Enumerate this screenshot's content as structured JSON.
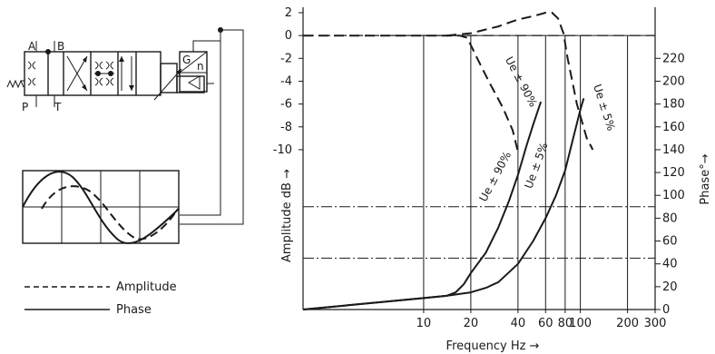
{
  "legend": {
    "amplitude_label": "Amplitude",
    "phase_label": "Phase"
  },
  "schematic": {
    "port_a": "A",
    "port_b": "B",
    "port_p": "P",
    "port_t": "T",
    "amp_g": "G",
    "amp_n": "n"
  },
  "chart_data": {
    "type": "line",
    "xlabel": "Frequency Hz →",
    "ylabel_left": "Amplitude dB →",
    "ylabel_right": "Phase°→",
    "x_scale": "log",
    "xlim": [
      1.7,
      300
    ],
    "x_ticks": [
      10,
      20,
      40,
      60,
      80,
      100,
      200,
      300
    ],
    "y_left_lim": [
      -24,
      2
    ],
    "y_left_ticks": [
      2,
      0,
      -2,
      -4,
      -6,
      -8,
      -10
    ],
    "y_right_lim": [
      0,
      260
    ],
    "y_right_ticks": [
      220,
      200,
      180,
      160,
      140,
      120,
      100,
      80,
      60,
      40,
      20,
      0
    ],
    "phase_reference_lines": [
      90,
      45
    ],
    "amplitude_reference_line": 0,
    "grid_vertical_at": [
      10,
      20,
      40,
      60,
      80,
      100,
      200
    ],
    "series": [
      {
        "name": "Ue ± 90%",
        "kind": "amplitude",
        "style": "dashed",
        "axis": "left",
        "points": [
          [
            1.7,
            0
          ],
          [
            14,
            0
          ],
          [
            17,
            0
          ],
          [
            19,
            -0.2
          ],
          [
            22,
            -2
          ],
          [
            26,
            -4
          ],
          [
            32,
            -6.3
          ],
          [
            37,
            -8.3
          ],
          [
            40,
            -10.2
          ]
        ]
      },
      {
        "name": "Ue ± 5%",
        "kind": "amplitude",
        "style": "dashed",
        "axis": "left",
        "points": [
          [
            14,
            0
          ],
          [
            20,
            0.2
          ],
          [
            30,
            0.8
          ],
          [
            40,
            1.4
          ],
          [
            50,
            1.7
          ],
          [
            60,
            2.0
          ],
          [
            66,
            2.0
          ],
          [
            72,
            1.5
          ],
          [
            78,
            0.2
          ],
          [
            83,
            -2
          ],
          [
            95,
            -6
          ],
          [
            110,
            -9
          ],
          [
            120,
            -10
          ]
        ]
      },
      {
        "name": "Ue ± 90%",
        "kind": "phase",
        "style": "solid",
        "axis": "right",
        "points": [
          [
            1.7,
            0
          ],
          [
            10,
            10
          ],
          [
            14,
            12
          ],
          [
            16,
            15
          ],
          [
            18,
            22
          ],
          [
            20,
            32
          ],
          [
            25,
            50
          ],
          [
            30,
            72
          ],
          [
            35,
            95
          ],
          [
            40,
            118
          ],
          [
            45,
            142
          ],
          [
            50,
            162
          ],
          [
            56,
            182
          ]
        ]
      },
      {
        "name": "Ue ± 5%",
        "kind": "phase",
        "style": "solid",
        "axis": "right",
        "points": [
          [
            1.7,
            0
          ],
          [
            10,
            10
          ],
          [
            14,
            12
          ],
          [
            20,
            15
          ],
          [
            25,
            19
          ],
          [
            30,
            24
          ],
          [
            40,
            40
          ],
          [
            50,
            60
          ],
          [
            60,
            80
          ],
          [
            70,
            100
          ],
          [
            80,
            122
          ],
          [
            90,
            150
          ],
          [
            100,
            175
          ],
          [
            105,
            185
          ]
        ]
      }
    ],
    "annotations": [
      "Ue ± 90%",
      "Ue ± 5%",
      "Ue ± 90%",
      "Ue ± 5%"
    ]
  }
}
